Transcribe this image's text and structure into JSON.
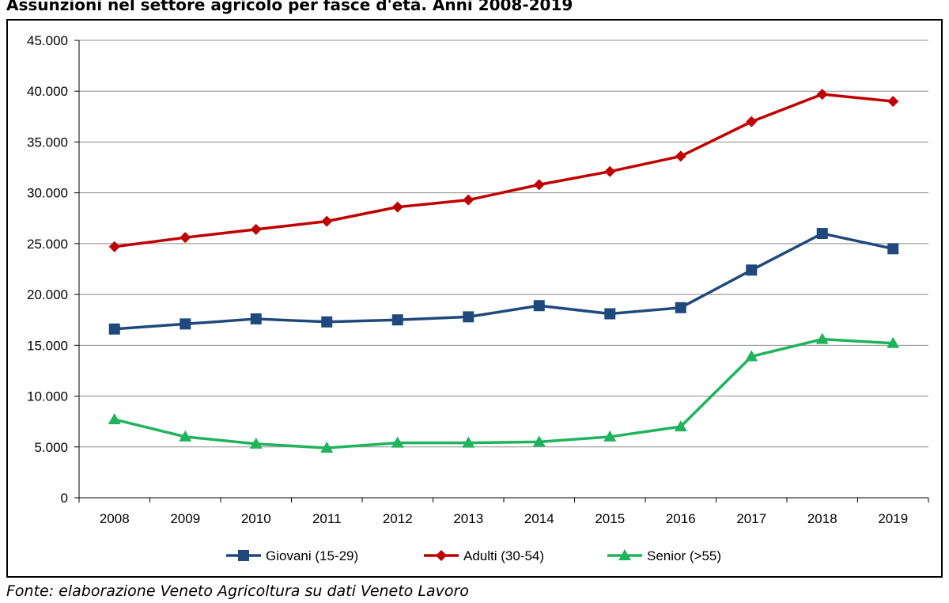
{
  "chart_data": {
    "type": "line",
    "title": "Assunzioni nel settore agricolo per fasce d'età. Anni 2008-2019",
    "source": "Fonte: elaborazione Veneto Agricoltura su dati Veneto Lavoro",
    "categories": [
      "2008",
      "2009",
      "2010",
      "2011",
      "2012",
      "2013",
      "2014",
      "2015",
      "2016",
      "2017",
      "2018",
      "2019"
    ],
    "y_ticks": [
      "0",
      "5.000",
      "10.000",
      "15.000",
      "20.000",
      "25.000",
      "30.000",
      "35.000",
      "40.000",
      "45.000"
    ],
    "ylim": [
      0,
      45000
    ],
    "grid": true,
    "legend_position": "bottom",
    "series": [
      {
        "name": "Giovani (15-29)",
        "color": "#1f497d",
        "marker": "square",
        "values": [
          16600,
          17100,
          17600,
          17300,
          17500,
          17800,
          18900,
          18100,
          18700,
          22400,
          26000,
          24500
        ]
      },
      {
        "name": "Adulti (30-54)",
        "color": "#c00000",
        "marker": "diamond",
        "values": [
          24700,
          25600,
          26400,
          27200,
          28600,
          29300,
          30800,
          32100,
          33600,
          37000,
          39700,
          39000
        ]
      },
      {
        "name": "Senior (>55)",
        "color": "#1fb35b",
        "marker": "triangle",
        "values": [
          7700,
          6000,
          5300,
          4900,
          5400,
          5400,
          5500,
          6000,
          7000,
          13900,
          15600,
          15200
        ]
      }
    ]
  }
}
